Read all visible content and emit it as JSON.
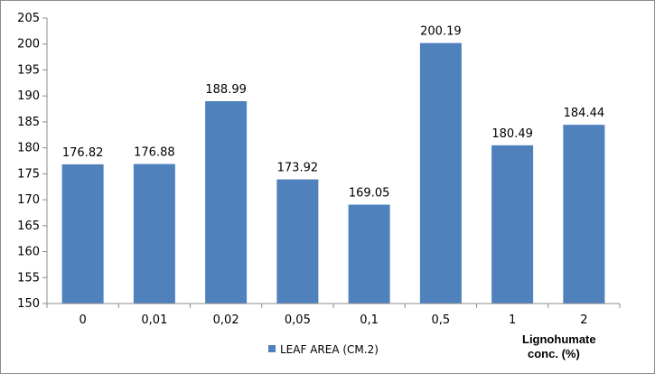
{
  "chart_data": {
    "type": "bar",
    "categories": [
      "0",
      "0,01",
      "0,02",
      "0,05",
      "0,1",
      "0,5",
      "1",
      "2"
    ],
    "series": [
      {
        "name": "LEAF AREA (CM.2)",
        "values": [
          176.82,
          176.88,
          188.99,
          173.92,
          169.05,
          200.19,
          180.49,
          184.44
        ],
        "labels": [
          "176.82",
          "176.88",
          "188.99",
          "173.92",
          "169.05",
          "200.19",
          "180.49",
          "184.44"
        ]
      }
    ],
    "xlabel_lines": [
      "Lignohumate",
      "conc. (%)"
    ],
    "ylim": [
      150,
      205
    ],
    "yticks": [
      "150",
      "155",
      "160",
      "165",
      "170",
      "175",
      "180",
      "185",
      "190",
      "195",
      "200",
      "205"
    ],
    "grid": false,
    "legend_position": "bottom-center",
    "colors": {
      "bar": "#4f81bd",
      "axis": "#8c8c8c"
    }
  }
}
